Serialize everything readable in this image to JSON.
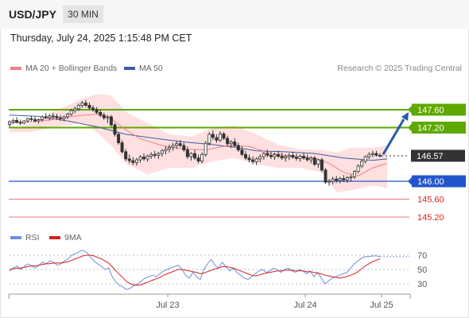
{
  "header": {
    "symbol": "USD/JPY",
    "timeframe": "30 MIN",
    "datetime": "Thursday, July 24, 2025 1:15:48 PM CET"
  },
  "legend": {
    "ma_bollinger": "MA 20 + Bollinger Bands",
    "ma50": "MA 50",
    "research": "Research © 2025 Trading Central"
  },
  "rsi_legend": {
    "rsi": "RSI",
    "ma": "9MA"
  },
  "colors": {
    "resistance": "#5fa800",
    "support_pivot": "#2255cc",
    "support": "#dd2222",
    "current": "#333333",
    "candle": "#333333",
    "bollinger_fill": "#ffd6d6",
    "ma20": "#f08080",
    "ma50": "#3a5f9e",
    "arrow": "#2a5aa8",
    "rsi": "#6f8fd8",
    "rsi_ma": "#d62020"
  },
  "chart_data": [
    {
      "type": "candlestick",
      "instrument": "USD/JPY",
      "timeframe": "30 MIN",
      "ylim": [
        144.95,
        148.0
      ],
      "x_ticks": [
        "Jul 23",
        "Jul 24",
        "Jul 25"
      ],
      "levels": [
        {
          "value": 147.6,
          "label": "147.60",
          "kind": "resistance"
        },
        {
          "value": 147.2,
          "label": "147.20",
          "kind": "resistance"
        },
        {
          "value": 146.57,
          "label": "146.57",
          "kind": "current"
        },
        {
          "value": 146.0,
          "label": "146.00",
          "kind": "pivot"
        },
        {
          "value": 145.6,
          "label": "145.60",
          "kind": "support"
        },
        {
          "value": 145.2,
          "label": "145.20",
          "kind": "support"
        }
      ],
      "arrow": {
        "from": 146.6,
        "to": 147.6
      },
      "candles": [
        [
          147.27,
          147.36,
          147.22,
          147.33
        ],
        [
          147.33,
          147.4,
          147.28,
          147.36
        ],
        [
          147.36,
          147.43,
          147.3,
          147.32
        ],
        [
          147.32,
          147.38,
          147.25,
          147.3
        ],
        [
          147.3,
          147.37,
          147.27,
          147.35
        ],
        [
          147.35,
          147.42,
          147.31,
          147.4
        ],
        [
          147.4,
          147.46,
          147.34,
          147.38
        ],
        [
          147.38,
          147.44,
          147.32,
          147.35
        ],
        [
          147.35,
          147.41,
          147.29,
          147.38
        ],
        [
          147.38,
          147.47,
          147.33,
          147.44
        ],
        [
          147.44,
          147.52,
          147.39,
          147.42
        ],
        [
          147.42,
          147.5,
          147.36,
          147.46
        ],
        [
          147.46,
          147.53,
          147.4,
          147.45
        ],
        [
          147.45,
          147.51,
          147.37,
          147.42
        ],
        [
          147.42,
          147.48,
          147.35,
          147.4
        ],
        [
          147.4,
          147.47,
          147.34,
          147.44
        ],
        [
          147.44,
          147.53,
          147.39,
          147.5
        ],
        [
          147.5,
          147.62,
          147.46,
          147.58
        ],
        [
          147.58,
          147.67,
          147.52,
          147.62
        ],
        [
          147.62,
          147.74,
          147.57,
          147.7
        ],
        [
          147.7,
          147.8,
          147.64,
          147.75
        ],
        [
          147.75,
          147.82,
          147.66,
          147.7
        ],
        [
          147.7,
          147.76,
          147.6,
          147.64
        ],
        [
          147.64,
          147.7,
          147.55,
          147.6
        ],
        [
          147.6,
          147.66,
          147.5,
          147.54
        ],
        [
          147.54,
          147.6,
          147.44,
          147.48
        ],
        [
          147.48,
          147.53,
          147.37,
          147.42
        ],
        [
          147.42,
          147.48,
          147.3,
          147.44
        ],
        [
          147.44,
          147.48,
          147.22,
          147.26
        ],
        [
          147.26,
          147.3,
          147.0,
          147.05
        ],
        [
          147.05,
          147.1,
          146.82,
          146.86
        ],
        [
          146.86,
          146.92,
          146.62,
          146.66
        ],
        [
          146.66,
          146.72,
          146.45,
          146.5
        ],
        [
          146.5,
          146.6,
          146.4,
          146.46
        ],
        [
          146.46,
          146.54,
          146.36,
          146.42
        ],
        [
          146.42,
          146.52,
          146.35,
          146.48
        ],
        [
          146.48,
          146.58,
          146.42,
          146.54
        ],
        [
          146.54,
          146.62,
          146.46,
          146.5
        ],
        [
          146.5,
          146.6,
          146.44,
          146.56
        ],
        [
          146.56,
          146.65,
          146.5,
          146.6
        ],
        [
          146.6,
          146.68,
          146.52,
          146.58
        ],
        [
          146.58,
          146.66,
          146.5,
          146.62
        ],
        [
          146.62,
          146.72,
          146.55,
          146.68
        ],
        [
          146.68,
          146.78,
          146.6,
          146.72
        ],
        [
          146.72,
          146.82,
          146.64,
          146.76
        ],
        [
          146.76,
          146.86,
          146.68,
          146.8
        ],
        [
          146.8,
          146.9,
          146.72,
          146.84
        ],
        [
          146.84,
          146.92,
          146.76,
          146.8
        ],
        [
          146.8,
          146.86,
          146.66,
          146.7
        ],
        [
          146.7,
          146.78,
          146.5,
          146.55
        ],
        [
          146.55,
          146.65,
          146.46,
          146.62
        ],
        [
          146.62,
          146.7,
          146.48,
          146.52
        ],
        [
          146.52,
          146.6,
          146.4,
          146.45
        ],
        [
          146.45,
          146.65,
          146.4,
          146.6
        ],
        [
          146.6,
          146.9,
          146.55,
          146.85
        ],
        [
          146.85,
          147.1,
          146.8,
          147.05
        ],
        [
          147.05,
          147.14,
          146.92,
          146.98
        ],
        [
          146.98,
          147.05,
          146.86,
          146.92
        ],
        [
          146.92,
          147.12,
          146.88,
          147.06
        ],
        [
          147.06,
          147.1,
          146.92,
          146.96
        ],
        [
          146.96,
          147.02,
          146.8,
          146.84
        ],
        [
          146.84,
          146.92,
          146.74,
          146.88
        ],
        [
          146.88,
          146.96,
          146.76,
          146.8
        ],
        [
          146.8,
          146.86,
          146.66,
          146.7
        ],
        [
          146.7,
          146.78,
          146.56,
          146.6
        ],
        [
          146.6,
          146.68,
          146.48,
          146.52
        ],
        [
          146.52,
          146.6,
          146.42,
          146.48
        ],
        [
          146.48,
          146.56,
          146.38,
          146.44
        ],
        [
          146.44,
          146.54,
          146.36,
          146.5
        ],
        [
          146.5,
          146.6,
          146.42,
          146.55
        ],
        [
          146.55,
          146.66,
          146.48,
          146.62
        ],
        [
          146.62,
          146.7,
          146.54,
          146.58
        ],
        [
          146.58,
          146.66,
          146.5,
          146.55
        ],
        [
          146.55,
          146.64,
          146.48,
          146.6
        ],
        [
          146.6,
          146.68,
          146.52,
          146.56
        ],
        [
          146.56,
          146.64,
          146.48,
          146.52
        ],
        [
          146.52,
          146.6,
          146.44,
          146.55
        ],
        [
          146.55,
          146.63,
          146.47,
          146.58
        ],
        [
          146.58,
          146.66,
          146.5,
          146.54
        ],
        [
          146.54,
          146.62,
          146.46,
          146.51
        ],
        [
          146.51,
          146.6,
          146.44,
          146.56
        ],
        [
          146.56,
          146.64,
          146.48,
          146.52
        ],
        [
          146.52,
          146.6,
          146.44,
          146.48
        ],
        [
          146.48,
          146.56,
          146.4,
          146.52
        ],
        [
          146.52,
          146.56,
          146.34,
          146.38
        ],
        [
          146.38,
          146.5,
          146.3,
          146.48
        ],
        [
          146.48,
          146.52,
          146.2,
          146.25
        ],
        [
          146.25,
          146.3,
          145.94,
          145.98
        ],
        [
          145.98,
          146.05,
          145.9,
          146.0
        ],
        [
          146.0,
          146.1,
          145.93,
          146.05
        ],
        [
          146.05,
          146.12,
          145.96,
          146.02
        ],
        [
          146.02,
          146.1,
          145.95,
          146.06
        ],
        [
          146.06,
          146.14,
          145.98,
          146.03
        ],
        [
          146.03,
          146.12,
          145.97,
          146.08
        ],
        [
          146.08,
          146.15,
          146.0,
          146.1
        ],
        [
          146.1,
          146.25,
          146.05,
          146.22
        ],
        [
          146.22,
          146.38,
          146.18,
          146.34
        ],
        [
          146.34,
          146.48,
          146.3,
          146.45
        ],
        [
          146.45,
          146.58,
          146.4,
          146.55
        ],
        [
          146.55,
          146.65,
          146.5,
          146.6
        ],
        [
          146.6,
          146.68,
          146.54,
          146.62
        ],
        [
          146.62,
          146.68,
          146.55,
          146.58
        ],
        [
          146.58,
          146.63,
          146.54,
          146.57
        ]
      ],
      "ma20": [
        [
          0,
          147.3
        ],
        [
          6,
          147.33
        ],
        [
          12,
          147.38
        ],
        [
          18,
          147.46
        ],
        [
          24,
          147.5
        ],
        [
          28,
          147.4
        ],
        [
          32,
          147.15
        ],
        [
          36,
          146.95
        ],
        [
          42,
          146.8
        ],
        [
          48,
          146.72
        ],
        [
          54,
          146.7
        ],
        [
          60,
          146.8
        ],
        [
          66,
          146.78
        ],
        [
          72,
          146.62
        ],
        [
          78,
          146.55
        ],
        [
          84,
          146.52
        ],
        [
          88,
          146.4
        ],
        [
          92,
          146.2
        ],
        [
          96,
          146.12
        ],
        [
          100,
          146.3
        ],
        [
          104,
          146.4
        ]
      ],
      "ma50": [
        [
          0,
          147.48
        ],
        [
          8,
          147.45
        ],
        [
          16,
          147.35
        ],
        [
          24,
          147.22
        ],
        [
          32,
          147.05
        ],
        [
          40,
          146.96
        ],
        [
          48,
          146.88
        ],
        [
          56,
          146.82
        ],
        [
          62,
          146.76
        ],
        [
          68,
          146.68
        ],
        [
          76,
          146.66
        ],
        [
          84,
          146.62
        ],
        [
          92,
          146.52
        ],
        [
          100,
          146.47
        ],
        [
          104,
          146.5
        ]
      ],
      "bollinger_upper": [
        [
          0,
          147.15
        ],
        [
          6,
          147.3
        ],
        [
          12,
          147.55
        ],
        [
          16,
          147.7
        ],
        [
          20,
          147.85
        ],
        [
          24,
          147.95
        ],
        [
          28,
          147.92
        ],
        [
          32,
          147.55
        ],
        [
          38,
          147.3
        ],
        [
          44,
          147.05
        ],
        [
          50,
          147.0
        ],
        [
          56,
          147.2
        ],
        [
          62,
          147.25
        ],
        [
          68,
          147.05
        ],
        [
          74,
          146.82
        ],
        [
          80,
          146.72
        ],
        [
          86,
          146.7
        ],
        [
          90,
          146.64
        ],
        [
          94,
          146.75
        ],
        [
          100,
          146.75
        ],
        [
          104,
          146.8
        ]
      ],
      "bollinger_lower": [
        [
          0,
          147.1
        ],
        [
          6,
          147.1
        ],
        [
          12,
          147.2
        ],
        [
          16,
          147.25
        ],
        [
          20,
          147.3
        ],
        [
          24,
          147.1
        ],
        [
          28,
          146.8
        ],
        [
          32,
          146.4
        ],
        [
          38,
          146.15
        ],
        [
          44,
          146.3
        ],
        [
          50,
          146.3
        ],
        [
          56,
          146.45
        ],
        [
          62,
          146.52
        ],
        [
          68,
          146.38
        ],
        [
          74,
          146.3
        ],
        [
          80,
          146.3
        ],
        [
          86,
          146.2
        ],
        [
          90,
          145.75
        ],
        [
          94,
          145.8
        ],
        [
          100,
          145.9
        ],
        [
          104,
          145.85
        ]
      ]
    },
    {
      "type": "line",
      "title": "RSI",
      "ylim": [
        15,
        80
      ],
      "y_ticks": [
        70,
        50,
        30
      ],
      "series": [
        {
          "name": "RSI",
          "values": [
            48,
            52,
            55,
            50,
            54,
            58,
            55,
            52,
            56,
            60,
            58,
            62,
            60,
            56,
            58,
            62,
            65,
            70,
            72,
            75,
            77,
            74,
            68,
            62,
            58,
            55,
            50,
            52,
            40,
            32,
            28,
            25,
            22,
            24,
            28,
            30,
            34,
            38,
            40,
            42,
            40,
            44,
            48,
            50,
            52,
            54,
            56,
            50,
            42,
            38,
            46,
            40,
            36,
            50,
            58,
            64,
            56,
            52,
            60,
            54,
            48,
            52,
            46,
            42,
            38,
            36,
            40,
            44,
            48,
            50,
            46,
            48,
            52,
            50,
            46,
            50,
            52,
            48,
            46,
            50,
            48,
            44,
            48,
            40,
            46,
            38,
            30,
            34,
            38,
            40,
            42,
            44,
            46,
            52,
            58,
            62,
            66,
            68,
            68,
            69,
            69,
            68
          ]
        },
        {
          "name": "9MA",
          "values": [
            50,
            51,
            52,
            52,
            53,
            54,
            55,
            55,
            56,
            57,
            58,
            58,
            59,
            59,
            59,
            60,
            61,
            63,
            65,
            67,
            69,
            70,
            70,
            69,
            67,
            65,
            62,
            59,
            54,
            48,
            43,
            38,
            33,
            30,
            28,
            28,
            29,
            31,
            33,
            35,
            37,
            39,
            42,
            44,
            46,
            48,
            50,
            50,
            49,
            48,
            47,
            46,
            44,
            45,
            47,
            49,
            51,
            52,
            54,
            54,
            53,
            52,
            50,
            48,
            46,
            44,
            42,
            41,
            42,
            44,
            45,
            46,
            47,
            48,
            48,
            49,
            49,
            49,
            48,
            48,
            48,
            47,
            47,
            46,
            45,
            44,
            42,
            41,
            40,
            39,
            38,
            39,
            40,
            42,
            44,
            47,
            51,
            55,
            58,
            61,
            63,
            65
          ]
        }
      ]
    }
  ]
}
